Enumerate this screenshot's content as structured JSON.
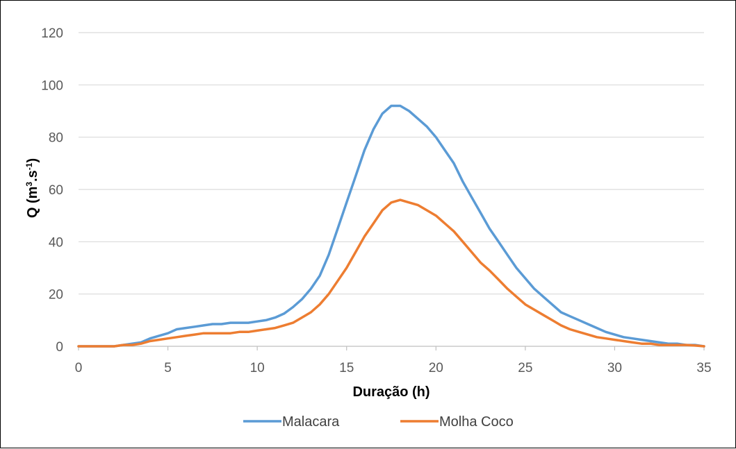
{
  "chart_data": {
    "type": "line",
    "xlabel": "Duração (h)",
    "ylabel_main": "Q (m",
    "ylabel_sup1": "3",
    "ylabel_mid": ".s",
    "ylabel_sup2": "-1",
    "ylabel_end": ")",
    "xlim": [
      0,
      35
    ],
    "ylim": [
      0,
      120
    ],
    "x_ticks": [
      0,
      5,
      10,
      15,
      20,
      25,
      30,
      35
    ],
    "y_ticks": [
      0,
      20,
      40,
      60,
      80,
      100,
      120
    ],
    "grid": "horizontal",
    "legend_position": "bottom",
    "series": [
      {
        "name": "Malacara",
        "color": "#5B9BD5",
        "x": [
          0,
          1,
          2,
          2.5,
          3,
          3.5,
          4,
          4.5,
          5,
          5.5,
          6,
          6.5,
          7,
          7.5,
          8,
          8.5,
          9,
          9.5,
          10,
          10.5,
          11,
          11.5,
          12,
          12.5,
          13,
          13.5,
          14,
          14.5,
          15,
          15.5,
          16,
          16.5,
          17,
          17.5,
          18,
          18.5,
          19,
          19.5,
          20,
          20.5,
          21,
          21.5,
          22,
          22.5,
          23,
          23.5,
          24,
          24.5,
          25,
          25.5,
          26,
          26.5,
          27,
          27.5,
          28,
          28.5,
          29,
          29.5,
          30,
          30.5,
          31,
          31.5,
          32,
          32.5,
          33,
          33.5,
          34,
          34.5,
          35
        ],
        "y": [
          0,
          0,
          0,
          0.5,
          1,
          1.5,
          3,
          4,
          5,
          6.5,
          7,
          7.5,
          8,
          8.5,
          8.5,
          9,
          9,
          9,
          9.5,
          10,
          11,
          12.5,
          15,
          18,
          22,
          27,
          35,
          45,
          55,
          65,
          75,
          83,
          89,
          92,
          92,
          90,
          87,
          84,
          80,
          75,
          70,
          63,
          57,
          51,
          45,
          40,
          35,
          30,
          26,
          22,
          19,
          16,
          13,
          11.5,
          10,
          8.5,
          7,
          5.5,
          4.5,
          3.5,
          3,
          2.5,
          2,
          1.5,
          1,
          1,
          0.5,
          0.5,
          0
        ]
      },
      {
        "name": "Molha Coco",
        "color": "#ED7D31",
        "x": [
          0,
          1,
          2,
          2.5,
          3,
          3.5,
          4,
          4.5,
          5,
          5.5,
          6,
          6.5,
          7,
          7.5,
          8,
          8.5,
          9,
          9.5,
          10,
          10.5,
          11,
          11.5,
          12,
          12.5,
          13,
          13.5,
          14,
          14.5,
          15,
          15.5,
          16,
          16.5,
          17,
          17.5,
          18,
          18.5,
          19,
          19.5,
          20,
          20.5,
          21,
          21.5,
          22,
          22.5,
          23,
          23.5,
          24,
          24.5,
          25,
          25.5,
          26,
          26.5,
          27,
          27.5,
          28,
          28.5,
          29,
          29.5,
          30,
          30.5,
          31,
          31.5,
          32,
          32.5,
          33,
          33.5,
          34,
          34.5,
          35
        ],
        "y": [
          0,
          0,
          0,
          0.5,
          0.5,
          1,
          2,
          2.5,
          3,
          3.5,
          4,
          4.5,
          5,
          5,
          5,
          5,
          5.5,
          5.5,
          6,
          6.5,
          7,
          8,
          9,
          11,
          13,
          16,
          20,
          25,
          30,
          36,
          42,
          47,
          52,
          55,
          56,
          55,
          54,
          52,
          50,
          47,
          44,
          40,
          36,
          32,
          29,
          25.5,
          22,
          19,
          16,
          14,
          12,
          10,
          8,
          6.5,
          5.5,
          4.5,
          3.5,
          3,
          2.5,
          2,
          1.5,
          1,
          1,
          0.5,
          0.5,
          0.5,
          0.5,
          0.3,
          0
        ]
      }
    ]
  }
}
